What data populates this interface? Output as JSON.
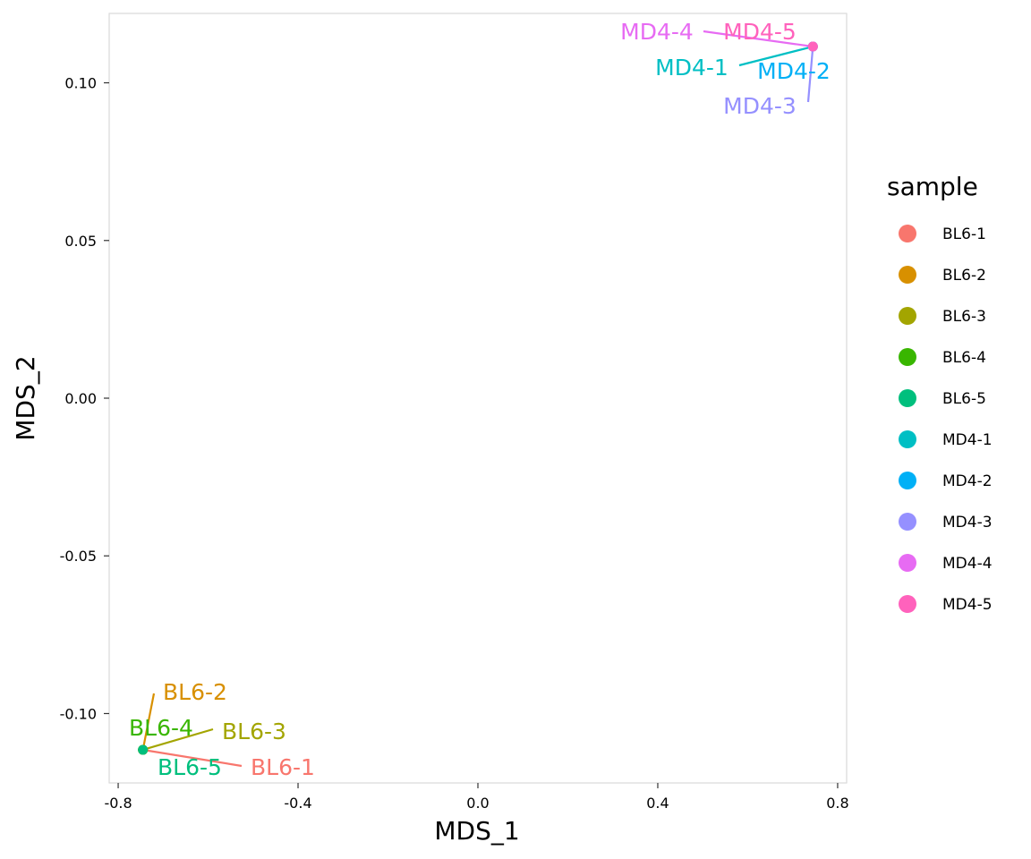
{
  "chart_data": {
    "type": "scatter",
    "xlabel": "MDS_1",
    "ylabel": "MDS_2",
    "xlim": [
      -0.82,
      0.82
    ],
    "ylim": [
      -0.122,
      0.122
    ],
    "x_ticks": [
      -0.8,
      -0.4,
      0.0,
      0.4,
      0.8
    ],
    "x_tick_labels": [
      "-0.8",
      "-0.4",
      "0.0",
      "0.4",
      "0.8"
    ],
    "y_ticks": [
      -0.1,
      -0.05,
      0.0,
      0.05,
      0.1
    ],
    "y_tick_labels": [
      "-0.10",
      "-0.05",
      "0.00",
      "0.05",
      "0.10"
    ],
    "grid": false,
    "legend": {
      "title": "sample",
      "position": "right"
    },
    "points": [
      {
        "sample": "BL6-1",
        "x": -0.745,
        "y": -0.1115,
        "color": "#F8766D"
      },
      {
        "sample": "BL6-2",
        "x": -0.745,
        "y": -0.1115,
        "color": "#D89000"
      },
      {
        "sample": "BL6-3",
        "x": -0.745,
        "y": -0.1115,
        "color": "#A3A500"
      },
      {
        "sample": "BL6-4",
        "x": -0.745,
        "y": -0.1115,
        "color": "#39B600"
      },
      {
        "sample": "BL6-5",
        "x": -0.745,
        "y": -0.1115,
        "color": "#00BF7D"
      },
      {
        "sample": "MD4-1",
        "x": 0.745,
        "y": 0.1115,
        "color": "#00BFC4"
      },
      {
        "sample": "MD4-2",
        "x": 0.745,
        "y": 0.1115,
        "color": "#00B0F6"
      },
      {
        "sample": "MD4-3",
        "x": 0.745,
        "y": 0.1115,
        "color": "#9590FF"
      },
      {
        "sample": "MD4-4",
        "x": 0.745,
        "y": 0.1115,
        "color": "#E76BF3"
      },
      {
        "sample": "MD4-5",
        "x": 0.745,
        "y": 0.1115,
        "color": "#FF62BC"
      }
    ]
  }
}
